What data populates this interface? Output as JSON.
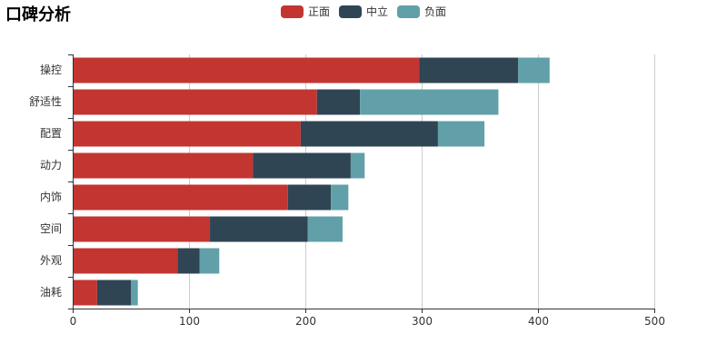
{
  "chart_data": {
    "type": "bar",
    "orientation": "horizontal",
    "stacked": true,
    "title": "口碑分析",
    "categories": [
      "操控",
      "舒适性",
      "配置",
      "动力",
      "内饰",
      "空间",
      "外观",
      "油耗"
    ],
    "series": [
      {
        "name": "正面",
        "color": "#c23531",
        "values": [
          298,
          210,
          196,
          155,
          185,
          118,
          90,
          21
        ]
      },
      {
        "name": "中立",
        "color": "#2f4554",
        "values": [
          85,
          37,
          118,
          84,
          37,
          84,
          19,
          29
        ]
      },
      {
        "name": "负面",
        "color": "#61a0a8",
        "values": [
          27,
          119,
          40,
          12,
          15,
          30,
          17,
          6
        ]
      }
    ],
    "xaxis": {
      "min": 0,
      "max": 500,
      "ticks": [
        0,
        100,
        200,
        300,
        400,
        500
      ]
    },
    "xlabel": "",
    "ylabel": "",
    "grid": true,
    "legend_position": "top-center"
  }
}
